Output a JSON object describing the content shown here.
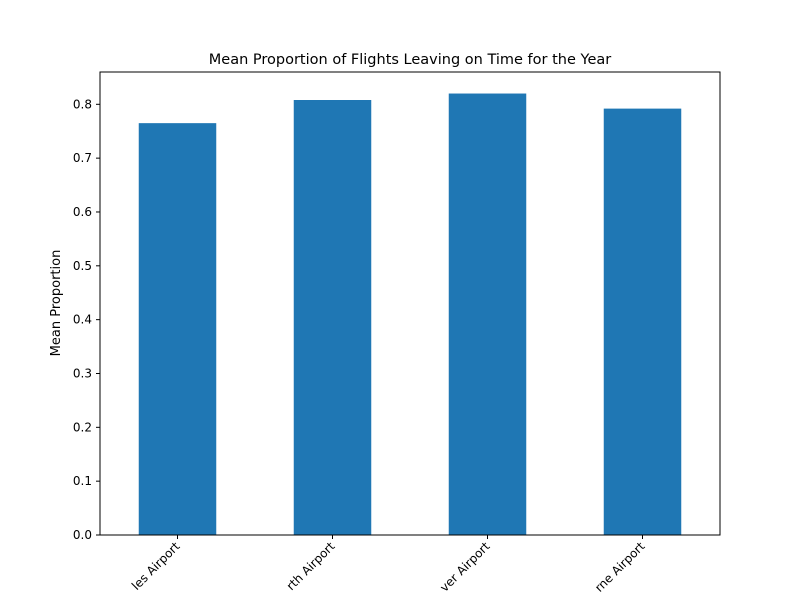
{
  "chart_data": {
    "type": "bar",
    "title": "Mean Proportion of Flights Leaving on Time for the Year",
    "xlabel": "",
    "ylabel": "Mean Proportion",
    "categories": [
      "...les Airport",
      "...rth Airport",
      "...ver Airport",
      "...rne Airport"
    ],
    "tick_labels_visible": [
      "les Airport",
      "rth Airport",
      "ver Airport",
      "rne Airport"
    ],
    "values": [
      0.765,
      0.808,
      0.82,
      0.792
    ],
    "ylim": [
      0,
      0.86
    ],
    "yticks": [
      0.0,
      0.1,
      0.2,
      0.3,
      0.4,
      0.5,
      0.6,
      0.7,
      0.8
    ],
    "ytick_labels": [
      "0.0",
      "0.1",
      "0.2",
      "0.3",
      "0.4",
      "0.5",
      "0.6",
      "0.7",
      "0.8"
    ],
    "bar_color": "#1f77b4",
    "grid": false,
    "legend": "none",
    "xtick_rotation_deg": 45
  }
}
